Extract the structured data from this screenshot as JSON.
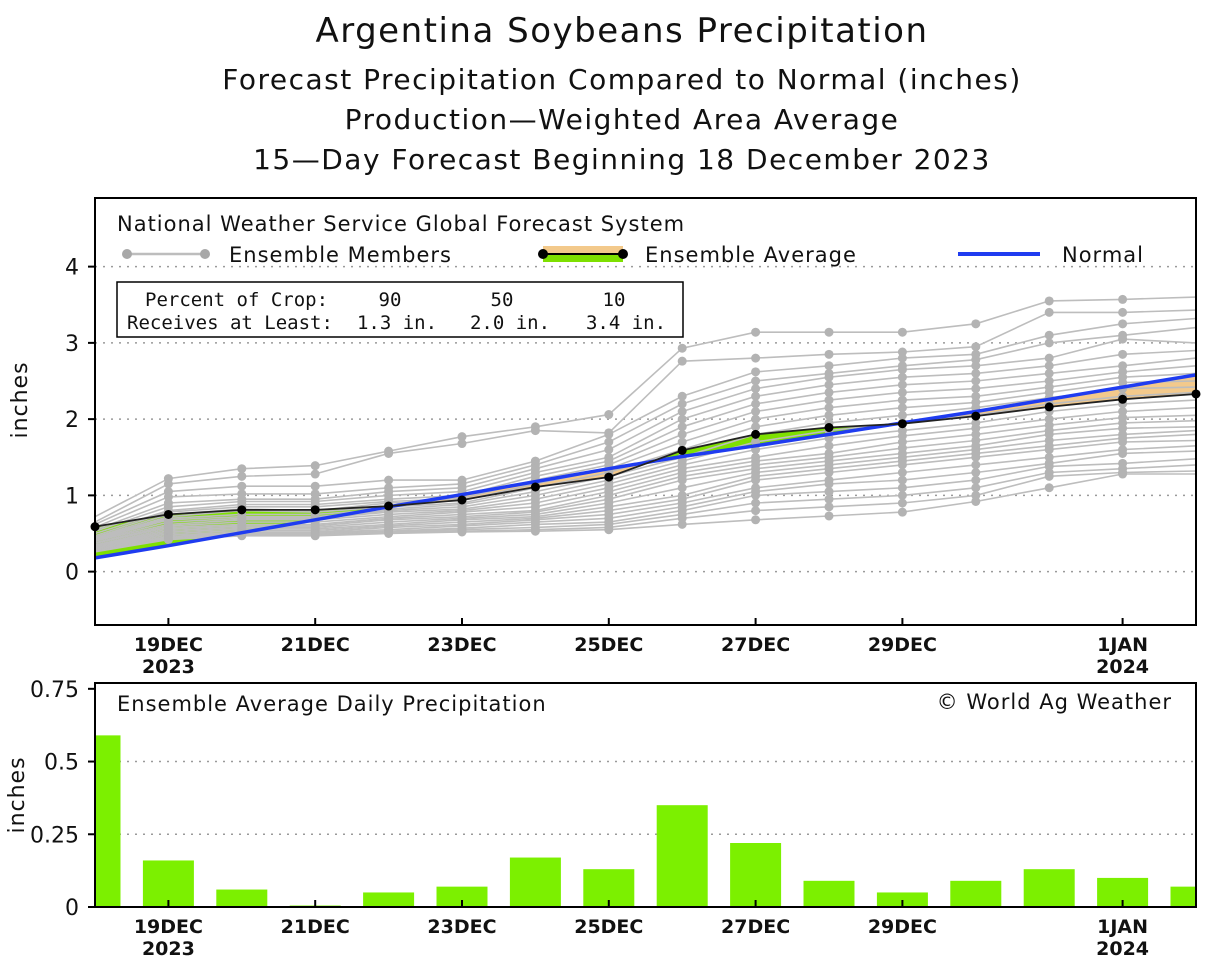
{
  "titles": {
    "line1": "Argentina Soybeans Precipitation",
    "line2": "Forecast Precipitation Compared to Normal (inches)",
    "line3": "Production—Weighted Area Average",
    "line4": "15—Day Forecast Beginning 18 December 2023"
  },
  "legend": {
    "model": "National Weather Service Global Forecast System",
    "members": "Ensemble Members",
    "average": "Ensemble Average",
    "normal": "Normal"
  },
  "crop_table": {
    "row1_label": "Percent of Crop:",
    "row2_label": "Receives at Least:",
    "pct": [
      "90",
      "50",
      "10"
    ],
    "amt": [
      "1.3 in.",
      "2.0 in.",
      "3.4 in."
    ]
  },
  "bottom_panel": {
    "title": "Ensemble Average Daily Precipitation",
    "credit": "© World Ag Weather"
  },
  "colors": {
    "above": "#7ee000",
    "below": "#f3c98b",
    "normal": "#1f3cf0",
    "members": "#bdbdbd",
    "bars": "#7cf000"
  },
  "chart_data": [
    {
      "type": "line",
      "title": "Argentina Soybeans Precipitation",
      "ylabel": "inches",
      "ylim": [
        -0.7,
        4.9
      ],
      "yticks": [
        0,
        1,
        2,
        3,
        4
      ],
      "x_days": [
        0,
        1,
        2,
        3,
        4,
        5,
        6,
        7,
        8,
        9,
        10,
        11,
        12,
        13,
        14,
        15
      ],
      "xticks": [
        {
          "day": 1,
          "label": "19DEC",
          "year": "2023"
        },
        {
          "day": 3,
          "label": "21DEC",
          "year": ""
        },
        {
          "day": 5,
          "label": "23DEC",
          "year": ""
        },
        {
          "day": 7,
          "label": "25DEC",
          "year": ""
        },
        {
          "day": 9,
          "label": "27DEC",
          "year": ""
        },
        {
          "day": 11,
          "label": "29DEC",
          "year": ""
        },
        {
          "day": 14,
          "label": "1JAN",
          "year": "2024"
        }
      ],
      "series": [
        {
          "name": "Ensemble Average",
          "values": [
            0.59,
            0.75,
            0.81,
            0.81,
            0.86,
            0.94,
            1.11,
            1.24,
            1.59,
            1.8,
            1.89,
            1.94,
            2.04,
            2.16,
            2.26,
            2.33
          ]
        },
        {
          "name": "Normal",
          "values": [
            0.18,
            0.34,
            0.51,
            0.68,
            0.85,
            1.01,
            1.18,
            1.35,
            1.51,
            1.65,
            1.8,
            1.95,
            2.1,
            2.26,
            2.42,
            2.58
          ]
        }
      ],
      "members": [
        [
          0.72,
          1.22,
          1.35,
          1.39,
          1.58,
          1.77,
          1.9,
          2.06,
          2.93,
          3.14,
          3.14,
          3.14,
          3.25,
          3.55,
          3.57,
          3.6
        ],
        [
          0.65,
          1.15,
          1.25,
          1.28,
          1.55,
          1.68,
          1.85,
          1.82,
          2.76,
          2.8,
          2.85,
          2.88,
          2.95,
          3.4,
          3.4,
          3.43
        ],
        [
          0.62,
          1.05,
          1.12,
          1.12,
          1.2,
          1.2,
          1.45,
          1.8,
          2.3,
          2.62,
          2.7,
          2.8,
          2.85,
          3.1,
          3.25,
          3.32
        ],
        [
          0.58,
          0.98,
          1.02,
          1.02,
          1.1,
          1.15,
          1.4,
          1.7,
          2.2,
          2.5,
          2.6,
          2.7,
          2.78,
          3.0,
          3.1,
          3.2
        ],
        [
          0.55,
          0.9,
          0.95,
          0.95,
          1.05,
          1.1,
          1.35,
          1.6,
          2.1,
          2.4,
          2.55,
          2.65,
          2.7,
          2.8,
          3.05,
          3.0
        ],
        [
          0.53,
          0.85,
          0.92,
          0.92,
          1.0,
          1.05,
          1.3,
          1.5,
          2.0,
          2.3,
          2.45,
          2.55,
          2.6,
          2.7,
          2.85,
          2.9
        ],
        [
          0.5,
          0.8,
          0.88,
          0.88,
          0.95,
          1.0,
          1.25,
          1.45,
          1.9,
          2.2,
          2.35,
          2.45,
          2.5,
          2.6,
          2.7,
          2.8
        ],
        [
          0.47,
          0.78,
          0.85,
          0.85,
          0.92,
          0.96,
          1.2,
          1.4,
          1.8,
          2.1,
          2.25,
          2.35,
          2.4,
          2.5,
          2.62,
          2.7
        ],
        [
          0.45,
          0.75,
          0.82,
          0.8,
          0.9,
          0.93,
          1.15,
          1.35,
          1.7,
          2.0,
          2.15,
          2.25,
          2.3,
          2.42,
          2.55,
          2.6
        ],
        [
          0.44,
          0.72,
          0.8,
          0.78,
          0.85,
          0.9,
          1.1,
          1.3,
          1.6,
          1.9,
          2.05,
          2.15,
          2.22,
          2.35,
          2.48,
          2.5
        ],
        [
          0.43,
          0.7,
          0.75,
          0.75,
          0.82,
          0.88,
          1.05,
          1.25,
          1.5,
          1.8,
          1.95,
          2.05,
          2.15,
          2.28,
          2.4,
          2.42
        ],
        [
          0.42,
          0.68,
          0.72,
          0.72,
          0.8,
          0.85,
          1.0,
          1.2,
          1.45,
          1.7,
          1.85,
          1.95,
          2.05,
          2.2,
          2.3,
          2.35
        ],
        [
          0.41,
          0.65,
          0.7,
          0.7,
          0.78,
          0.82,
          0.95,
          1.15,
          1.4,
          1.6,
          1.75,
          1.85,
          1.95,
          2.1,
          2.2,
          2.25
        ],
        [
          0.4,
          0.62,
          0.68,
          0.68,
          0.75,
          0.8,
          0.9,
          1.1,
          1.35,
          1.5,
          1.65,
          1.78,
          1.88,
          2.0,
          2.1,
          2.15
        ],
        [
          0.38,
          0.6,
          0.65,
          0.65,
          0.72,
          0.78,
          0.85,
          1.05,
          1.3,
          1.45,
          1.55,
          1.7,
          1.8,
          1.92,
          2.02,
          2.05
        ],
        [
          0.37,
          0.58,
          0.62,
          0.62,
          0.7,
          0.75,
          0.8,
          1.0,
          1.25,
          1.4,
          1.5,
          1.62,
          1.72,
          1.85,
          1.95,
          1.98
        ],
        [
          0.35,
          0.56,
          0.6,
          0.6,
          0.68,
          0.72,
          0.78,
          0.95,
          1.2,
          1.35,
          1.45,
          1.55,
          1.65,
          1.8,
          1.88,
          1.9
        ],
        [
          0.34,
          0.54,
          0.58,
          0.58,
          0.65,
          0.7,
          0.75,
          0.9,
          1.1,
          1.3,
          1.4,
          1.5,
          1.6,
          1.72,
          1.8,
          1.85
        ],
        [
          0.33,
          0.52,
          0.56,
          0.56,
          0.62,
          0.68,
          0.72,
          0.85,
          1.0,
          1.25,
          1.35,
          1.45,
          1.55,
          1.65,
          1.75,
          1.8
        ],
        [
          0.32,
          0.5,
          0.54,
          0.54,
          0.6,
          0.65,
          0.7,
          0.8,
          0.95,
          1.2,
          1.3,
          1.4,
          1.5,
          1.6,
          1.7,
          1.72
        ],
        [
          0.31,
          0.48,
          0.52,
          0.52,
          0.58,
          0.62,
          0.68,
          0.75,
          0.9,
          1.1,
          1.2,
          1.3,
          1.4,
          1.5,
          1.6,
          1.65
        ],
        [
          0.3,
          0.46,
          0.51,
          0.51,
          0.55,
          0.6,
          0.65,
          0.7,
          0.85,
          1.05,
          1.15,
          1.2,
          1.3,
          1.42,
          1.55,
          1.58
        ],
        [
          0.29,
          0.45,
          0.5,
          0.5,
          0.53,
          0.57,
          0.62,
          0.65,
          0.8,
          1.0,
          1.05,
          1.1,
          1.2,
          1.38,
          1.42,
          1.48
        ],
        [
          0.28,
          0.44,
          0.49,
          0.49,
          0.52,
          0.55,
          0.58,
          0.62,
          0.75,
          0.9,
          0.95,
          1.0,
          1.1,
          1.3,
          1.35,
          1.4
        ],
        [
          0.27,
          0.43,
          0.48,
          0.48,
          0.51,
          0.53,
          0.55,
          0.58,
          0.7,
          0.8,
          0.85,
          0.9,
          1.0,
          1.25,
          1.3,
          1.32
        ],
        [
          0.26,
          0.42,
          0.47,
          0.47,
          0.5,
          0.52,
          0.53,
          0.55,
          0.62,
          0.68,
          0.73,
          0.78,
          0.92,
          1.1,
          1.28,
          1.28
        ]
      ]
    },
    {
      "type": "bar",
      "title": "Ensemble Average Daily Precipitation",
      "ylabel": "inches",
      "ylim": [
        0,
        0.77
      ],
      "yticks": [
        0,
        0.25,
        0.5,
        0.75
      ],
      "ytick_labels": [
        "0",
        "0.25",
        "0.5",
        "0.75"
      ],
      "x_days": [
        0,
        1,
        2,
        3,
        4,
        5,
        6,
        7,
        8,
        9,
        10,
        11,
        12,
        13,
        14,
        15
      ],
      "values": [
        0.59,
        0.16,
        0.06,
        0.005,
        0.05,
        0.07,
        0.17,
        0.13,
        0.35,
        0.22,
        0.09,
        0.05,
        0.09,
        0.13,
        0.1,
        0.07
      ]
    }
  ]
}
